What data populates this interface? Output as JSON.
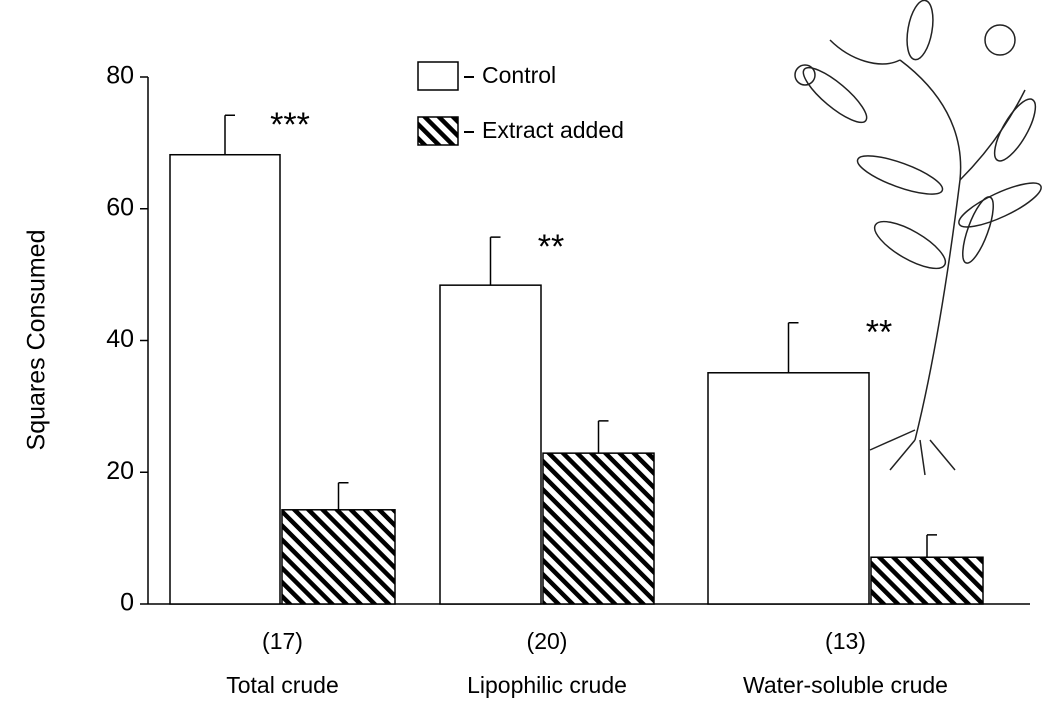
{
  "chart_data": {
    "type": "bar",
    "y_label": "Squares Consumed",
    "categories": [
      "Total crude",
      "Lipophilic crude",
      "Water-soluble crude"
    ],
    "sample_sizes": [
      "(17)",
      "(20)",
      "(13)"
    ],
    "annotations": [
      "***",
      "**",
      "**"
    ],
    "series": [
      {
        "name": "Control",
        "color": "#ffffff",
        "values": [
          68.2,
          48.4,
          35.1
        ],
        "errors": [
          6.0,
          7.3,
          7.6
        ]
      },
      {
        "name": "Extract added",
        "color": "hatch",
        "values": [
          14.3,
          22.9,
          7.1
        ],
        "errors": [
          4.1,
          4.9,
          3.4
        ]
      }
    ],
    "ylim": [
      0,
      80
    ],
    "yticks": [
      0,
      20,
      40,
      60,
      80
    ],
    "grid": false
  }
}
